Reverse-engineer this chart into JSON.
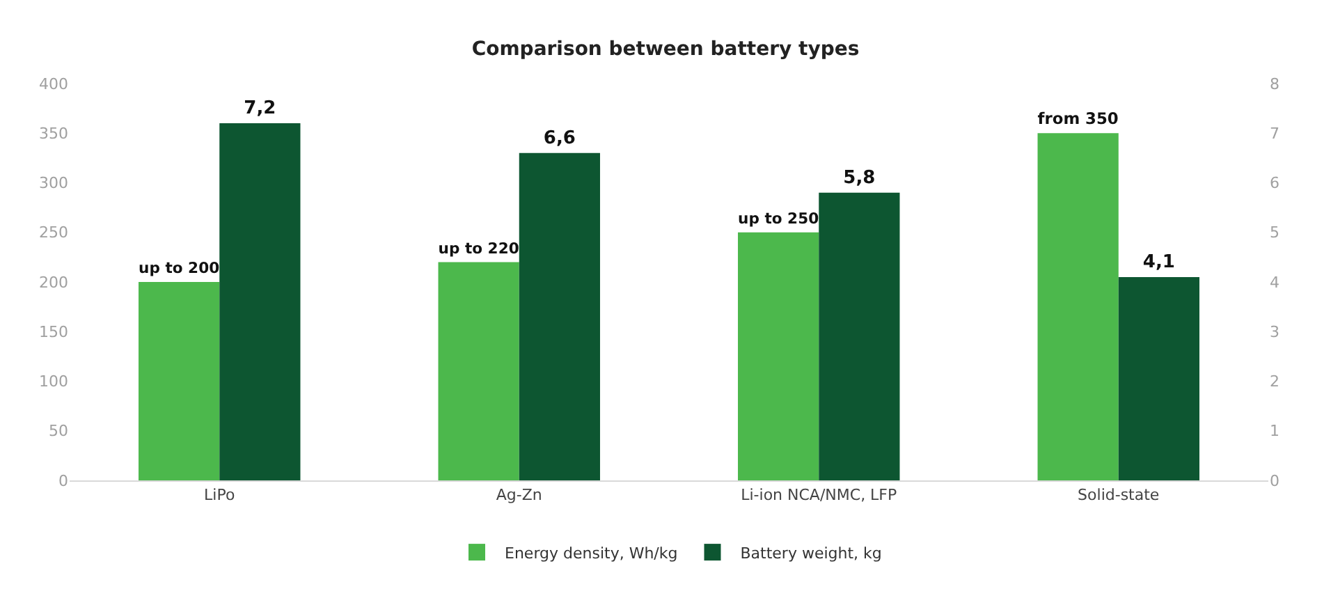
{
  "chart_data": {
    "type": "bar",
    "title": "Comparison between battery types",
    "categories": [
      "LiPo",
      "Ag-Zn",
      "Li-ion NCA/NMC, LFP",
      "Solid-state"
    ],
    "series": [
      {
        "name": "Energy density, Wh/kg",
        "color": "#4cb84c",
        "values": [
          200,
          220,
          250,
          350
        ],
        "value_labels": [
          "up to 200",
          "up to 220",
          "up to 250",
          "from 350"
        ]
      },
      {
        "name": "Battery weight, kg",
        "color": "#0d5631",
        "values": [
          7.2,
          6.6,
          5.8,
          4.1
        ],
        "value_labels": [
          "7,2",
          "6,6",
          "5,8",
          "4,1"
        ],
        "axis": "y2"
      }
    ],
    "ylim": [
      0,
      400
    ],
    "yticks": [
      0,
      50,
      100,
      150,
      200,
      250,
      300,
      350,
      400
    ],
    "y2lim": [
      0,
      8
    ],
    "y2ticks": [
      0,
      1,
      2,
      3,
      4,
      5,
      6,
      7,
      8
    ],
    "legend": "bottom"
  }
}
